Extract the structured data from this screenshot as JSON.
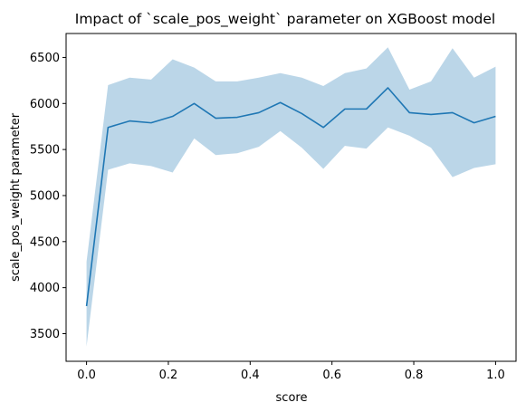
{
  "chart_data": {
    "type": "line",
    "title": "Impact of `scale_pos_weight` parameter on XGBoost model",
    "xlabel": "score",
    "ylabel": "scale_pos_weight parameter",
    "xlim": [
      -0.05,
      1.05
    ],
    "ylim": [
      3200,
      6760
    ],
    "grid": false,
    "x_ticks": [
      0.0,
      0.2,
      0.4,
      0.6,
      0.8,
      1.0
    ],
    "x_tick_labels": [
      "0.0",
      "0.2",
      "0.4",
      "0.6",
      "0.8",
      "1.0"
    ],
    "y_ticks": [
      3500,
      4000,
      4500,
      5000,
      5500,
      6000,
      6500
    ],
    "y_tick_labels": [
      "3500",
      "4000",
      "4500",
      "5000",
      "5500",
      "6000",
      "6500"
    ],
    "line_color": "#1f77b4",
    "band_color": "#1f77b4",
    "band_opacity": 0.3,
    "series": [
      {
        "x": [
          0.0,
          0.0526,
          0.1053,
          0.1579,
          0.2105,
          0.2632,
          0.3158,
          0.3684,
          0.4211,
          0.4737,
          0.5263,
          0.5789,
          0.6316,
          0.6842,
          0.7368,
          0.7895,
          0.8421,
          0.8947,
          0.9474,
          1.0
        ],
        "y": [
          3800,
          5740,
          5810,
          5790,
          5860,
          6000,
          5840,
          5850,
          5900,
          6010,
          5890,
          5740,
          5940,
          5940,
          6170,
          5900,
          5880,
          5900,
          5790,
          5860
        ],
        "lower": [
          3360,
          5280,
          5350,
          5320,
          5250,
          5620,
          5440,
          5460,
          5530,
          5700,
          5520,
          5290,
          5540,
          5510,
          5740,
          5650,
          5520,
          5200,
          5300,
          5340
        ],
        "upper": [
          4280,
          6200,
          6280,
          6260,
          6480,
          6390,
          6240,
          6240,
          6280,
          6330,
          6280,
          6190,
          6330,
          6380,
          6610,
          6150,
          6240,
          6600,
          6280,
          6400
        ]
      }
    ]
  }
}
